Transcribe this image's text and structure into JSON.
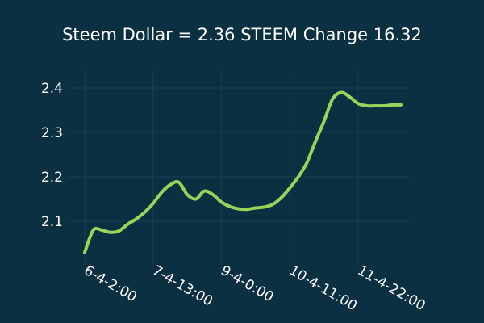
{
  "chart_data": {
    "type": "line",
    "title": "Steem Dollar = 2.36 STEEM  Change 16.32",
    "xlabel": "",
    "ylabel": "",
    "xlim": [
      0,
      37
    ],
    "ylim": [
      2.02,
      2.42
    ],
    "grid": true,
    "legend": "none",
    "x_ticks": [
      {
        "x": 0,
        "label": "6-4-2:00"
      },
      {
        "x": 8,
        "label": "7-4-13:00"
      },
      {
        "x": 16,
        "label": "9-4-0:00"
      },
      {
        "x": 24,
        "label": "10-4-11:00"
      },
      {
        "x": 32,
        "label": "11-4-22:00"
      }
    ],
    "y_ticks": [
      2.1,
      2.2,
      2.3,
      2.4
    ],
    "series": [
      {
        "color": "#99d45a",
        "x": [
          0,
          1,
          2,
          3,
          4,
          5,
          6,
          7,
          8,
          9,
          10,
          11,
          12,
          13,
          14,
          15,
          16,
          17,
          18,
          19,
          20,
          21,
          22,
          23,
          24,
          25,
          26,
          27,
          28,
          29,
          30,
          31,
          32,
          33,
          34,
          35,
          36,
          37
        ],
        "values": [
          2.03,
          2.08,
          2.08,
          2.075,
          2.078,
          2.093,
          2.105,
          2.12,
          2.14,
          2.165,
          2.182,
          2.188,
          2.16,
          2.15,
          2.168,
          2.16,
          2.143,
          2.133,
          2.128,
          2.127,
          2.13,
          2.132,
          2.138,
          2.153,
          2.175,
          2.2,
          2.232,
          2.28,
          2.325,
          2.375,
          2.39,
          2.38,
          2.365,
          2.36,
          2.36,
          2.36,
          2.362,
          2.362
        ]
      }
    ]
  }
}
